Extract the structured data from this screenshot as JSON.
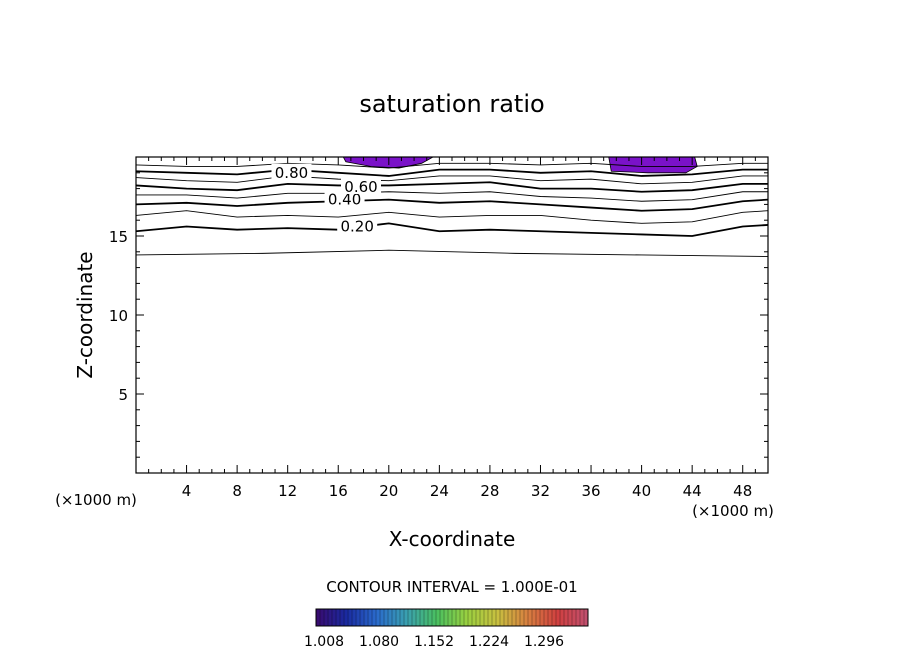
{
  "chart_data": {
    "type": "contour",
    "title": "saturation ratio",
    "xlabel": "X-coordinate",
    "ylabel": "Z-coordinate",
    "x_unit_label_left": "(×1000 m)",
    "x_unit_label_right": "(×1000 m)",
    "xlim": [
      0,
      50
    ],
    "ylim": [
      0,
      20
    ],
    "x_ticks": [
      4,
      8,
      12,
      16,
      20,
      24,
      28,
      32,
      36,
      40,
      44,
      48
    ],
    "y_ticks": [
      5,
      10,
      15
    ],
    "contour_interval_text": "CONTOUR INTERVAL = 1.000E-01",
    "contours": [
      {
        "level": "0.20",
        "label_x": 17.5,
        "label_y": 15.6,
        "points": [
          [
            0,
            15.3
          ],
          [
            4,
            15.6
          ],
          [
            8,
            15.4
          ],
          [
            12,
            15.5
          ],
          [
            16,
            15.4
          ],
          [
            20,
            15.8
          ],
          [
            24,
            15.3
          ],
          [
            28,
            15.4
          ],
          [
            32,
            15.3
          ],
          [
            36,
            15.2
          ],
          [
            40,
            15.1
          ],
          [
            44,
            15.0
          ],
          [
            48,
            15.6
          ],
          [
            50,
            15.7
          ]
        ]
      },
      {
        "level": "0.30",
        "points": [
          [
            0,
            16.3
          ],
          [
            4,
            16.6
          ],
          [
            8,
            16.2
          ],
          [
            12,
            16.3
          ],
          [
            16,
            16.2
          ],
          [
            20,
            16.5
          ],
          [
            24,
            16.2
          ],
          [
            28,
            16.3
          ],
          [
            32,
            16.3
          ],
          [
            36,
            16.0
          ],
          [
            40,
            15.8
          ],
          [
            44,
            15.9
          ],
          [
            48,
            16.5
          ],
          [
            50,
            16.6
          ]
        ]
      },
      {
        "level": "0.40",
        "label_x": 16.5,
        "label_y": 17.3,
        "points": [
          [
            0,
            17.0
          ],
          [
            4,
            17.1
          ],
          [
            8,
            16.9
          ],
          [
            12,
            17.1
          ],
          [
            16,
            17.2
          ],
          [
            20,
            17.3
          ],
          [
            24,
            17.1
          ],
          [
            28,
            17.2
          ],
          [
            32,
            17.0
          ],
          [
            36,
            16.8
          ],
          [
            40,
            16.6
          ],
          [
            44,
            16.7
          ],
          [
            48,
            17.2
          ],
          [
            50,
            17.3
          ]
        ]
      },
      {
        "level": "0.50",
        "points": [
          [
            0,
            17.6
          ],
          [
            4,
            17.6
          ],
          [
            8,
            17.4
          ],
          [
            12,
            17.7
          ],
          [
            16,
            17.7
          ],
          [
            20,
            17.8
          ],
          [
            24,
            17.7
          ],
          [
            28,
            17.8
          ],
          [
            32,
            17.5
          ],
          [
            36,
            17.4
          ],
          [
            40,
            17.2
          ],
          [
            44,
            17.3
          ],
          [
            48,
            17.8
          ],
          [
            50,
            17.8
          ]
        ]
      },
      {
        "level": "0.60",
        "label_x": 17.8,
        "label_y": 18.1,
        "points": [
          [
            0,
            18.2
          ],
          [
            4,
            18.0
          ],
          [
            8,
            17.9
          ],
          [
            12,
            18.3
          ],
          [
            16,
            18.2
          ],
          [
            20,
            18.2
          ],
          [
            24,
            18.3
          ],
          [
            28,
            18.4
          ],
          [
            32,
            18.0
          ],
          [
            36,
            18.0
          ],
          [
            40,
            17.8
          ],
          [
            44,
            17.9
          ],
          [
            48,
            18.3
          ],
          [
            50,
            18.3
          ]
        ]
      },
      {
        "level": "0.70",
        "points": [
          [
            0,
            18.7
          ],
          [
            4,
            18.5
          ],
          [
            8,
            18.4
          ],
          [
            12,
            18.8
          ],
          [
            16,
            18.6
          ],
          [
            20,
            18.5
          ],
          [
            24,
            18.8
          ],
          [
            28,
            18.8
          ],
          [
            32,
            18.5
          ],
          [
            36,
            18.6
          ],
          [
            40,
            18.3
          ],
          [
            44,
            18.4
          ],
          [
            48,
            18.8
          ],
          [
            50,
            18.8
          ]
        ]
      },
      {
        "level": "0.80",
        "label_x": 12.3,
        "label_y": 19.0,
        "points": [
          [
            0,
            19.1
          ],
          [
            4,
            19.0
          ],
          [
            8,
            18.9
          ],
          [
            12,
            19.2
          ],
          [
            16,
            19.0
          ],
          [
            20,
            18.8
          ],
          [
            24,
            19.2
          ],
          [
            28,
            19.2
          ],
          [
            32,
            19.0
          ],
          [
            36,
            19.1
          ],
          [
            40,
            18.8
          ],
          [
            44,
            18.9
          ],
          [
            48,
            19.2
          ],
          [
            50,
            19.2
          ]
        ]
      },
      {
        "level": "0.90",
        "points": [
          [
            0,
            19.5
          ],
          [
            4,
            19.4
          ],
          [
            8,
            19.4
          ],
          [
            12,
            19.6
          ],
          [
            16,
            19.5
          ],
          [
            20,
            19.3
          ],
          [
            24,
            19.6
          ],
          [
            28,
            19.6
          ],
          [
            32,
            19.5
          ],
          [
            36,
            19.6
          ],
          [
            40,
            19.4
          ],
          [
            44,
            19.4
          ],
          [
            48,
            19.6
          ],
          [
            50,
            19.6
          ]
        ]
      },
      {
        "level": "0.10",
        "points": [
          [
            0,
            13.8
          ],
          [
            10,
            13.9
          ],
          [
            20,
            14.1
          ],
          [
            30,
            13.9
          ],
          [
            40,
            13.8
          ],
          [
            50,
            13.7
          ]
        ]
      }
    ],
    "shaded_regions": [
      {
        "value_min": 1.0,
        "color": "#7a12c8",
        "points": [
          [
            16.4,
            20
          ],
          [
            23.5,
            20
          ],
          [
            22.6,
            19.6
          ],
          [
            20.8,
            19.3
          ],
          [
            18.6,
            19.4
          ],
          [
            16.6,
            19.7
          ]
        ]
      },
      {
        "value_min": 1.0,
        "color": "#7a12c8",
        "points": [
          [
            37.4,
            20
          ],
          [
            44.2,
            20
          ],
          [
            44.4,
            19.4
          ],
          [
            43.5,
            19.0
          ],
          [
            40.5,
            19.0
          ],
          [
            37.6,
            19.1
          ]
        ]
      }
    ],
    "colorbar": {
      "tick_labels": [
        "1.008",
        "1.080",
        "1.152",
        "1.224",
        "1.296"
      ],
      "colors": [
        "#3a0a6e",
        "#1a2aa0",
        "#2a6acc",
        "#3aa0b0",
        "#4ac060",
        "#9ad040",
        "#c8c040",
        "#d88040",
        "#d04040",
        "#c05070"
      ]
    }
  }
}
